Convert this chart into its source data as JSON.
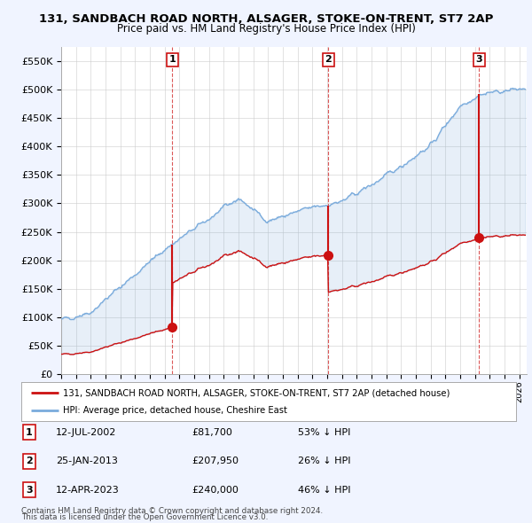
{
  "title_line1": "131, SANDBACH ROAD NORTH, ALSAGER, STOKE-ON-TRENT, ST7 2AP",
  "title_line2": "Price paid vs. HM Land Registry's House Price Index (HPI)",
  "ylabel_ticks": [
    "£0",
    "£50K",
    "£100K",
    "£150K",
    "£200K",
    "£250K",
    "£300K",
    "£350K",
    "£400K",
    "£450K",
    "£500K",
    "£550K"
  ],
  "ytick_values": [
    0,
    50000,
    100000,
    150000,
    200000,
    250000,
    300000,
    350000,
    400000,
    450000,
    500000,
    550000
  ],
  "ylim": [
    0,
    575000
  ],
  "xlim_start": 1995.0,
  "xlim_end": 2026.5,
  "hpi_color": "#7aabdc",
  "price_color": "#cc1111",
  "sale_marker_color": "#cc1111",
  "vertical_line_color": "#cc1111",
  "purchases": [
    {
      "date_dec": 2002.53,
      "price": 81700,
      "label": "1",
      "date_str": "12-JUL-2002",
      "pct": "53% ↓ HPI"
    },
    {
      "date_dec": 2013.07,
      "price": 207950,
      "label": "2",
      "date_str": "25-JAN-2013",
      "pct": "26% ↓ HPI"
    },
    {
      "date_dec": 2023.28,
      "price": 240000,
      "label": "3",
      "date_str": "12-APR-2023",
      "pct": "46% ↓ HPI"
    }
  ],
  "legend_label_price": "131, SANDBACH ROAD NORTH, ALSAGER, STOKE-ON-TRENT, ST7 2AP (detached house)",
  "legend_label_hpi": "HPI: Average price, detached house, Cheshire East",
  "footer_line1": "Contains HM Land Registry data © Crown copyright and database right 2024.",
  "footer_line2": "This data is licensed under the Open Government Licence v3.0.",
  "background_color": "#f0f4ff",
  "plot_bg_color": "#ffffff",
  "grid_color": "#cccccc",
  "xtick_years": [
    1995,
    1996,
    1997,
    1998,
    1999,
    2000,
    2001,
    2002,
    2003,
    2004,
    2005,
    2006,
    2007,
    2008,
    2009,
    2010,
    2011,
    2012,
    2013,
    2014,
    2015,
    2016,
    2017,
    2018,
    2019,
    2020,
    2021,
    2022,
    2023,
    2024,
    2025,
    2026
  ]
}
